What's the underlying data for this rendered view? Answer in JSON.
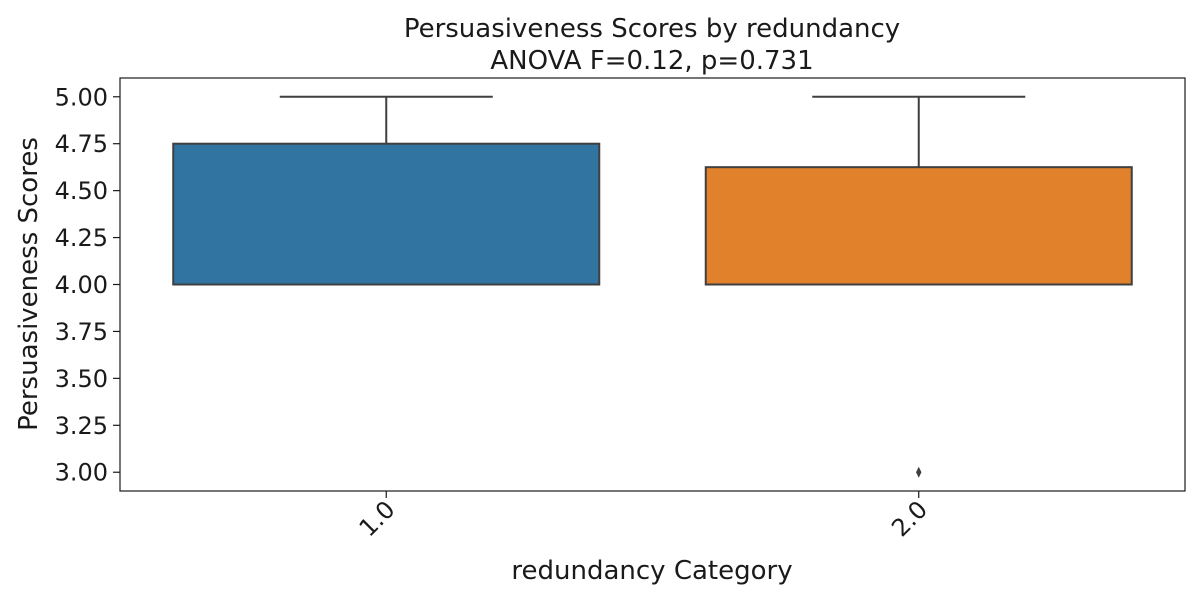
{
  "chart_data": {
    "type": "box",
    "title": "Persuasiveness Scores by redundancy",
    "subtitle": "ANOVA F=0.12, p=0.731",
    "xlabel": "redundancy Category",
    "ylabel": "Persuasiveness Scores",
    "ylim": [
      2.9,
      5.1
    ],
    "yticks": [
      "3.00",
      "3.25",
      "3.50",
      "3.75",
      "4.00",
      "4.25",
      "4.50",
      "4.75",
      "5.00"
    ],
    "grid": false,
    "categories": [
      "1.0",
      "2.0"
    ],
    "boxes": [
      {
        "category": "1.0",
        "whisker_low": 4.0,
        "q1": 4.0,
        "median": 4.0,
        "q3": 4.75,
        "whisker_high": 5.0,
        "outliers": [],
        "color": "#3274a1"
      },
      {
        "category": "2.0",
        "whisker_low": 4.0,
        "q1": 4.0,
        "median": 4.0,
        "q3": 4.625,
        "whisker_high": 5.0,
        "outliers": [
          3.0
        ],
        "color": "#e1812c"
      }
    ]
  }
}
